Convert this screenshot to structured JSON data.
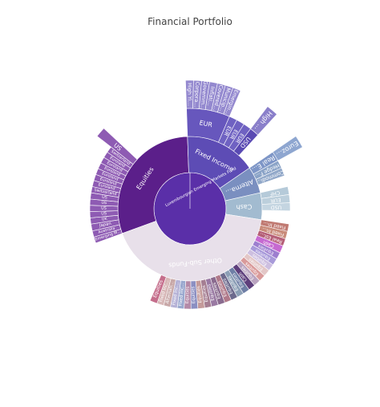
{
  "chart_data": {
    "type": "sunburst",
    "title": "Financial Portfolio",
    "root": {
      "label": "Luxembourgian Emerging Markets Fund",
      "color": "#5a2fa8"
    },
    "children": [
      {
        "label": "Equities",
        "value": 30,
        "color": "#5b1f8a",
        "children": [
          {
            "label": "Emerging Markets",
            "value": 1,
            "color": "#8e5bb3"
          },
          {
            "label": "Australia",
            "value": 1,
            "color": "#8e5bb3"
          },
          {
            "label": "Japan",
            "value": 1.1,
            "color": "#8e5bb3"
          },
          {
            "label": "UK",
            "value": 1,
            "color": "#8e5bb3"
          },
          {
            "label": "US",
            "value": 1,
            "color": "#8e5bb3"
          },
          {
            "label": "US",
            "value": 1,
            "color": "#8e5bb3"
          },
          {
            "label": "US",
            "value": 1,
            "color": "#8e5bb3"
          },
          {
            "label": "US",
            "value": 1,
            "color": "#8e5bb3"
          },
          {
            "label": "Switzerland",
            "value": 1,
            "color": "#8e5bb3"
          },
          {
            "label": "Euroland",
            "value": 1,
            "color": "#8e5bb3"
          },
          {
            "label": "Euroland",
            "value": 1,
            "color": "#8e5bb3"
          },
          {
            "label": "Euroland",
            "value": 1,
            "color": "#8e5bb3"
          },
          {
            "label": "Euroland",
            "value": 1,
            "color": "#8e5bb3"
          },
          {
            "label": "Euroland",
            "value": 1,
            "color": "#8e5bb3"
          },
          {
            "label": "Euroland",
            "value": 1,
            "color": "#8e5bb3"
          },
          {
            "label": "Switzerland",
            "value": 1,
            "color": "#8e5bb3"
          },
          {
            "label": "US",
            "value": 1.4,
            "color": "#8e5bb3",
            "extend": 22
          }
        ]
      },
      {
        "label": "Fixed Income",
        "value": 16,
        "color": "#5d4cb5",
        "children": [
          {
            "label": "EUR",
            "value": 7,
            "color": "#6757bd",
            "children": [
              {
                "label": "High Yield Bonds",
                "value": 1,
                "color": "#9489cf"
              },
              {
                "label": "Corporate Bonds",
                "value": 1,
                "color": "#9489cf"
              },
              {
                "label": "Government Bonds",
                "value": 1,
                "color": "#9489cf"
              },
              {
                "label": "Inflation Linked",
                "value": 1,
                "color": "#9489cf"
              },
              {
                "label": "Covered Bonds",
                "value": 1,
                "color": "#9489cf"
              },
              {
                "label": "Municipal Bonds",
                "value": 1,
                "color": "#9489cf"
              },
              {
                "label": "Emerging Debt",
                "value": 1,
                "color": "#9489cf"
              }
            ]
          },
          {
            "label": "EUR",
            "value": 1.3,
            "color": "#6f62c2"
          },
          {
            "label": "EUR",
            "value": 1.3,
            "color": "#6f62c2"
          },
          {
            "label": "EUR",
            "value": 1.3,
            "color": "#6f62c2"
          },
          {
            "label": "USD",
            "value": 1.5,
            "color": "#5a4ab3",
            "children": [
              {
                "label": "High Yield Bonds",
                "value": 1.5,
                "color": "#8a7fca"
              }
            ]
          }
        ]
      },
      {
        "label": "Alternative Investments",
        "value": 6,
        "color": "#7a8fc0",
        "children": [
          {
            "label": "Real Estate",
            "value": 1.6,
            "color": "#7e96c7",
            "children": [
              {
                "label": "Eurozone",
                "value": 1.6,
                "color": "#8ea6d0"
              }
            ]
          },
          {
            "label": "Hedge Funds",
            "value": 1.3,
            "color": "#8aa3c7"
          },
          {
            "label": "Commodities",
            "value": 1.3,
            "color": "#91a8c9"
          }
        ]
      },
      {
        "label": "Cash",
        "value": 6,
        "color": "#a2bbd0",
        "children": [
          {
            "label": "CHF",
            "value": 1.3,
            "color": "#b5cad9"
          },
          {
            "label": "EUR",
            "value": 1.3,
            "color": "#bccfdc"
          },
          {
            "label": "USD",
            "value": 1.3,
            "color": "#c4d5e1"
          }
        ]
      },
      {
        "label": "Other Sub-Funds",
        "value": 42,
        "color": "#e8e0ea",
        "children": [
          {
            "label": "Fixed Income",
            "value": 1.2,
            "color": "#c07a72"
          },
          {
            "label": "Fixed Income",
            "value": 1.2,
            "color": "#c98b7a"
          },
          {
            "label": "Real Estate",
            "value": 1.2,
            "color": "#b55f77"
          },
          {
            "label": "Cash",
            "value": 1.2,
            "color": "#c66ad1"
          },
          {
            "label": "Equities",
            "value": 1.1,
            "color": "#9d7fcf"
          },
          {
            "label": "Equities",
            "value": 1.1,
            "color": "#a89ad9"
          },
          {
            "label": "Equities",
            "value": 1.1,
            "color": "#cdbfe0"
          },
          {
            "label": "Equities",
            "value": 1.1,
            "color": "#e3c7c7"
          },
          {
            "label": "Equities",
            "value": 1.1,
            "color": "#d99a9a"
          },
          {
            "label": "Equities",
            "value": 1.1,
            "color": "#b9a3bf"
          },
          {
            "label": "Cash",
            "value": 1.1,
            "color": "#5e3f7c"
          },
          {
            "label": "Equities",
            "value": 1.1,
            "color": "#6f7fa6"
          },
          {
            "label": "Equities",
            "value": 1.1,
            "color": "#8c9fb6"
          },
          {
            "label": "Equities",
            "value": 1.1,
            "color": "#6d6a8d"
          },
          {
            "label": "Equities",
            "value": 1.1,
            "color": "#b07a8a"
          },
          {
            "label": "Equities",
            "value": 1.1,
            "color": "#8a6b8f"
          },
          {
            "label": "Equities",
            "value": 1.1,
            "color": "#9a7aa3"
          },
          {
            "label": "Equities",
            "value": 1.1,
            "color": "#a57e92"
          },
          {
            "label": "Equities",
            "value": 1.1,
            "color": "#c49a9a"
          },
          {
            "label": "Equities",
            "value": 1.1,
            "color": "#8b8fc2"
          },
          {
            "label": "Equities",
            "value": 1.1,
            "color": "#b48aa8"
          },
          {
            "label": "Fixed Income",
            "value": 1.1,
            "color": "#9aa9cf"
          },
          {
            "label": "Fixed Income",
            "value": 1.1,
            "color": "#b5b2d6"
          },
          {
            "label": "Alternative Inv.",
            "value": 1.1,
            "color": "#c8a8a8"
          },
          {
            "label": "Fixed Income",
            "value": 1.1,
            "color": "#d7b7b7"
          },
          {
            "label": "Equities",
            "value": 1.2,
            "color": "#c56e8c"
          }
        ]
      }
    ]
  }
}
